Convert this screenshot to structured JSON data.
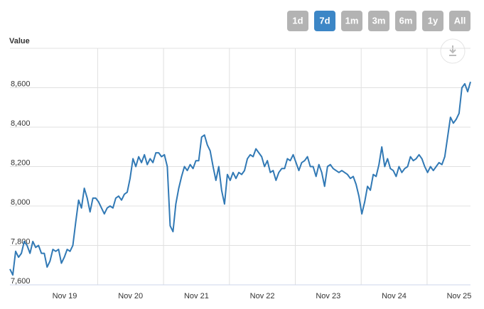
{
  "chart_data": {
    "type": "line",
    "y_axis_title": "Value",
    "range_buttons": [
      "1d",
      "7d",
      "1m",
      "3m",
      "6m",
      "1y",
      "All"
    ],
    "selected_range": "7d",
    "x_labels": [
      "Nov 19",
      "Nov 20",
      "Nov 21",
      "Nov 22",
      "Nov 23",
      "Nov 24",
      "Nov 25"
    ],
    "ylim": [
      7600,
      8800
    ],
    "yticks": [
      {
        "value": 7600,
        "label": "7,600"
      },
      {
        "value": 7800,
        "label": "7,800"
      },
      {
        "value": 8000,
        "label": "8,000"
      },
      {
        "value": 8200,
        "label": "8,200"
      },
      {
        "value": 8400,
        "label": "8,400"
      },
      {
        "value": 8600,
        "label": "8,600"
      }
    ],
    "grid": true,
    "color": "#3179b5",
    "values": [
      7680,
      7650,
      7770,
      7740,
      7760,
      7820,
      7800,
      7760,
      7820,
      7790,
      7800,
      7760,
      7760,
      7690,
      7720,
      7780,
      7770,
      7780,
      7710,
      7740,
      7780,
      7770,
      7800,
      7920,
      8030,
      7990,
      8090,
      8040,
      7970,
      8040,
      8040,
      8020,
      7990,
      7960,
      7990,
      8000,
      7990,
      8040,
      8050,
      8030,
      8060,
      8070,
      8140,
      8240,
      8200,
      8250,
      8220,
      8260,
      8210,
      8240,
      8220,
      8270,
      8270,
      8250,
      8260,
      8200,
      7900,
      7870,
      8010,
      8090,
      8150,
      8200,
      8180,
      8210,
      8190,
      8230,
      8230,
      8350,
      8360,
      8310,
      8280,
      8200,
      8130,
      8200,
      8080,
      8010,
      8160,
      8130,
      8170,
      8140,
      8170,
      8160,
      8180,
      8240,
      8260,
      8250,
      8290,
      8270,
      8250,
      8200,
      8230,
      8170,
      8180,
      8130,
      8170,
      8190,
      8190,
      8240,
      8230,
      8260,
      8220,
      8180,
      8220,
      8230,
      8250,
      8200,
      8200,
      8150,
      8210,
      8170,
      8100,
      8200,
      8210,
      8190,
      8180,
      8170,
      8180,
      8170,
      8160,
      8140,
      8150,
      8110,
      8050,
      7960,
      8020,
      8100,
      8080,
      8160,
      8150,
      8210,
      8300,
      8200,
      8240,
      8190,
      8180,
      8150,
      8200,
      8170,
      8190,
      8200,
      8250,
      8230,
      8240,
      8260,
      8240,
      8200,
      8170,
      8200,
      8180,
      8200,
      8220,
      8210,
      8250,
      8350,
      8450,
      8420,
      8440,
      8470,
      8600,
      8620,
      8580,
      8630
    ]
  }
}
